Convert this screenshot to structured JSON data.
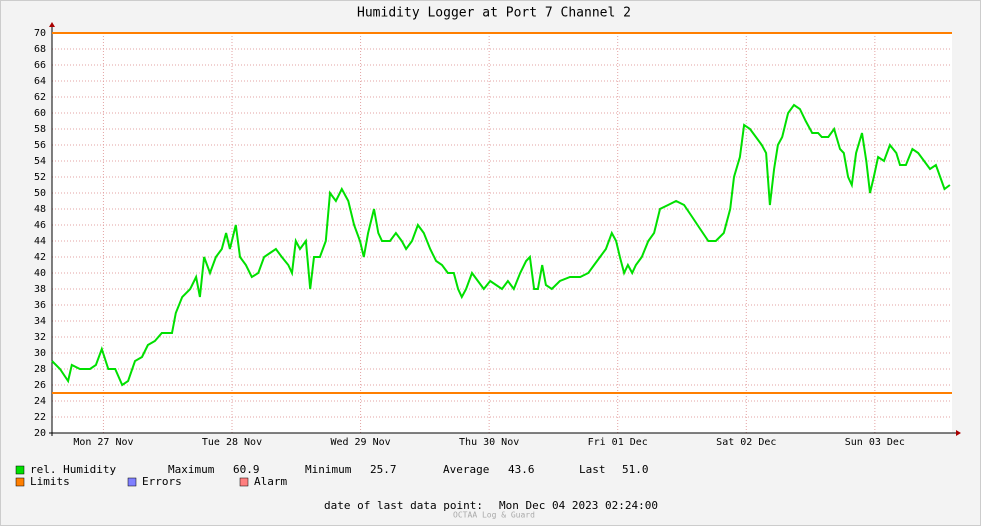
{
  "chart_data": {
    "type": "line",
    "title": "Humidity Logger at Port 7 Channel 2",
    "x": [
      0,
      1.5,
      3.0,
      3.7,
      5.2,
      7.1,
      8.2,
      9.3,
      10.5,
      11.8,
      13.1,
      14.2,
      15.5,
      16.8,
      17.9,
      19.2,
      20.5,
      22.4,
      23.1,
      24.3,
      25.8,
      26.9,
      27.6,
      28.4,
      29.5,
      30.6,
      31.7,
      32.5,
      33.2,
      34.3,
      35.1,
      36.2,
      37.3,
      38.5,
      39.6,
      40.7,
      41.8,
      42.9,
      44.1,
      44.8,
      45.5,
      46.3,
      47.4,
      48.2,
      48.9,
      50.0,
      51.1,
      51.9,
      53.0,
      54.1,
      55.3,
      56.4,
      57.5,
      58.2,
      59.0,
      60.1,
      60.9,
      61.6,
      62.3,
      63.1,
      64.2,
      65.3,
      66.1,
      67.2,
      68.3,
      69.4,
      70.6,
      71.7,
      72.8,
      73.9,
      75.0,
      75.8,
      76.5,
      77.3,
      78.4,
      79.5,
      80.6,
      81.8,
      82.9,
      84.0,
      85.1,
      86.2,
      87.4,
      88.5,
      89.2,
      90.0,
      90.7,
      91.5,
      92.2,
      93.3,
      94.8,
      96.7,
      98.6,
      100.1,
      101.2,
      102.3,
      103.4,
      104.5,
      105.3,
      106.0,
      106.8,
      107.5,
      108.3,
      109.0,
      110.1,
      111.3,
      112.4,
      113.5,
      115.0,
      116.5,
      118.0,
      119.5,
      121.0,
      122.5,
      123.9,
      125.4,
      126.6,
      127.3,
      128.4,
      129.2,
      130.3,
      131.4,
      132.5,
      133.3,
      134.0,
      134.8,
      135.5,
      136.3,
      137.4,
      138.5,
      139.6,
      140.7,
      141.9,
      143.0,
      143.7,
      144.9,
      146.0,
      147.1,
      147.8,
      148.6,
      149.3,
      150.1,
      151.2,
      152.0,
      152.7,
      153.4,
      154.2,
      155.3,
      156.4,
      157.6,
      158.3,
      159.4,
      160.6,
      161.7,
      162.8,
      163.9,
      165.0,
      165.8,
      166.6,
      167.6
    ],
    "series": [
      {
        "name": "rel. Humidity",
        "color": "#00e000",
        "values": [
          29,
          28,
          26.5,
          28.5,
          28,
          28,
          28.5,
          30.5,
          28,
          28,
          26,
          26.5,
          29,
          29.5,
          31,
          31.5,
          32.5,
          32.5,
          35,
          37,
          38,
          39.5,
          37,
          42,
          40,
          42,
          43,
          45,
          43,
          46,
          42,
          41,
          39.5,
          40,
          42,
          42.5,
          43,
          42,
          41,
          40,
          44,
          43,
          44,
          38,
          42,
          42,
          44,
          50,
          49,
          50.5,
          49,
          46,
          44,
          42,
          45,
          48,
          45,
          44,
          44,
          44,
          45,
          44,
          43,
          44,
          46,
          45,
          43,
          41.5,
          41,
          40,
          40,
          38,
          37,
          38,
          40,
          39,
          38,
          39,
          38.5,
          38,
          39,
          38,
          40,
          41.5,
          42,
          38,
          38,
          41,
          38.5,
          38,
          39,
          39.5,
          39.5,
          40,
          41,
          42,
          43,
          45,
          44,
          42,
          40,
          41,
          40,
          41,
          42,
          44,
          45,
          48,
          48.5,
          49,
          48.5,
          47,
          45.5,
          44,
          44,
          45,
          48,
          52,
          54.5,
          58.5,
          58,
          57,
          56,
          55,
          48.5,
          53,
          56,
          57,
          60,
          61,
          60.5,
          59,
          57.5,
          57.5,
          57,
          57,
          58,
          55.5,
          55,
          52,
          51,
          55,
          57.5,
          54,
          50,
          52,
          54.5,
          54,
          56,
          55,
          53.5,
          53.5,
          55.5,
          55,
          54,
          53,
          53.5,
          52,
          50.5,
          51
        ]
      }
    ],
    "limits": {
      "name": "Limits",
      "color": "#ff7f00",
      "values": [
        70,
        25
      ]
    },
    "xlim": [
      0,
      168
    ],
    "xticks": [
      {
        "value": 9.6,
        "label": "Mon 27 Nov"
      },
      {
        "value": 33.6,
        "label": "Tue 28 Nov"
      },
      {
        "value": 57.6,
        "label": "Wed 29 Nov"
      },
      {
        "value": 81.6,
        "label": "Thu 30 Nov"
      },
      {
        "value": 105.6,
        "label": "Fri 01 Dec"
      },
      {
        "value": 129.6,
        "label": "Sat 02 Dec"
      },
      {
        "value": 153.6,
        "label": "Sun 03 Dec"
      }
    ],
    "ylim": [
      20,
      70
    ],
    "yticks": [
      20,
      22,
      24,
      26,
      28,
      30,
      32,
      34,
      36,
      38,
      40,
      42,
      44,
      46,
      48,
      50,
      52,
      54,
      56,
      58,
      60,
      62,
      64,
      66,
      68,
      70
    ],
    "grid": true,
    "stats": [
      {
        "label": "Maximum",
        "value": "60.9"
      },
      {
        "label": "Minimum",
        "value": "25.7"
      },
      {
        "label": "Average",
        "value": "43.6"
      },
      {
        "label": "Last",
        "value": "51.0"
      }
    ],
    "extra_legend": [
      {
        "name": "Errors",
        "color": "#7f7fff"
      },
      {
        "name": "Alarm",
        "color": "#ff7f7f"
      }
    ],
    "footer_label": "date of last data point:",
    "footer_value": "Mon Dec 04 2023 02:24:00",
    "watermark": "OCTAA Log & Guard"
  }
}
